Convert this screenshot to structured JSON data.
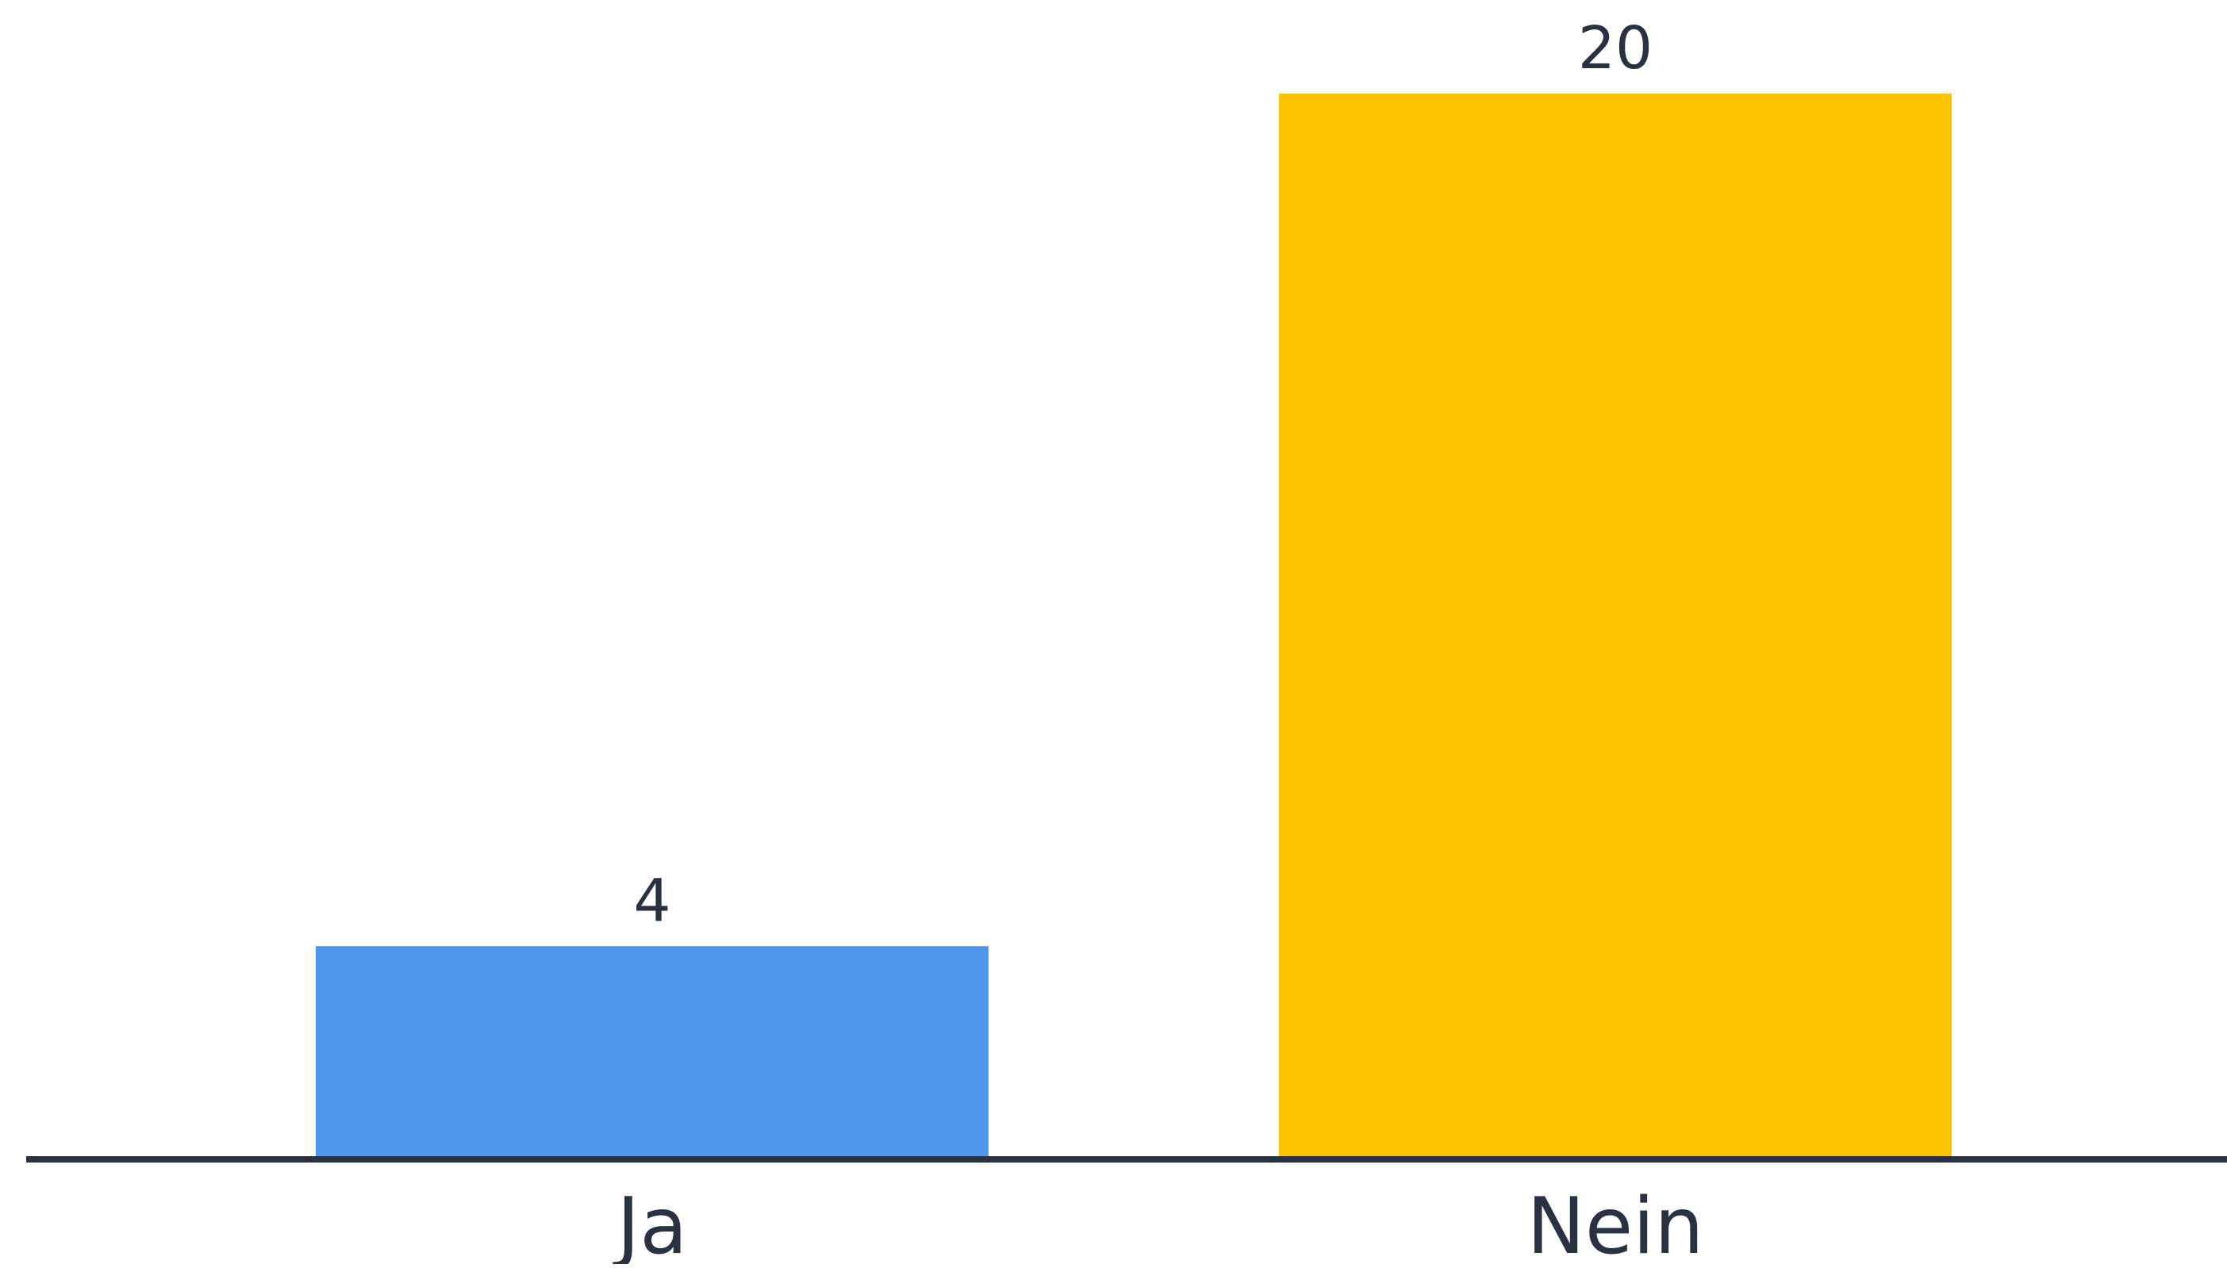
{
  "chart_data": {
    "type": "bar",
    "categories": [
      "Ja",
      "Nein"
    ],
    "values": [
      4,
      20
    ],
    "data_labels": [
      "4",
      "20"
    ],
    "colors": [
      "#4F97EC",
      "#FCC400"
    ],
    "axis_color": "#2a3141",
    "ylim": [
      0,
      20
    ],
    "grid": false,
    "legend": "none",
    "title": "",
    "xlabel": "",
    "ylabel": ""
  }
}
